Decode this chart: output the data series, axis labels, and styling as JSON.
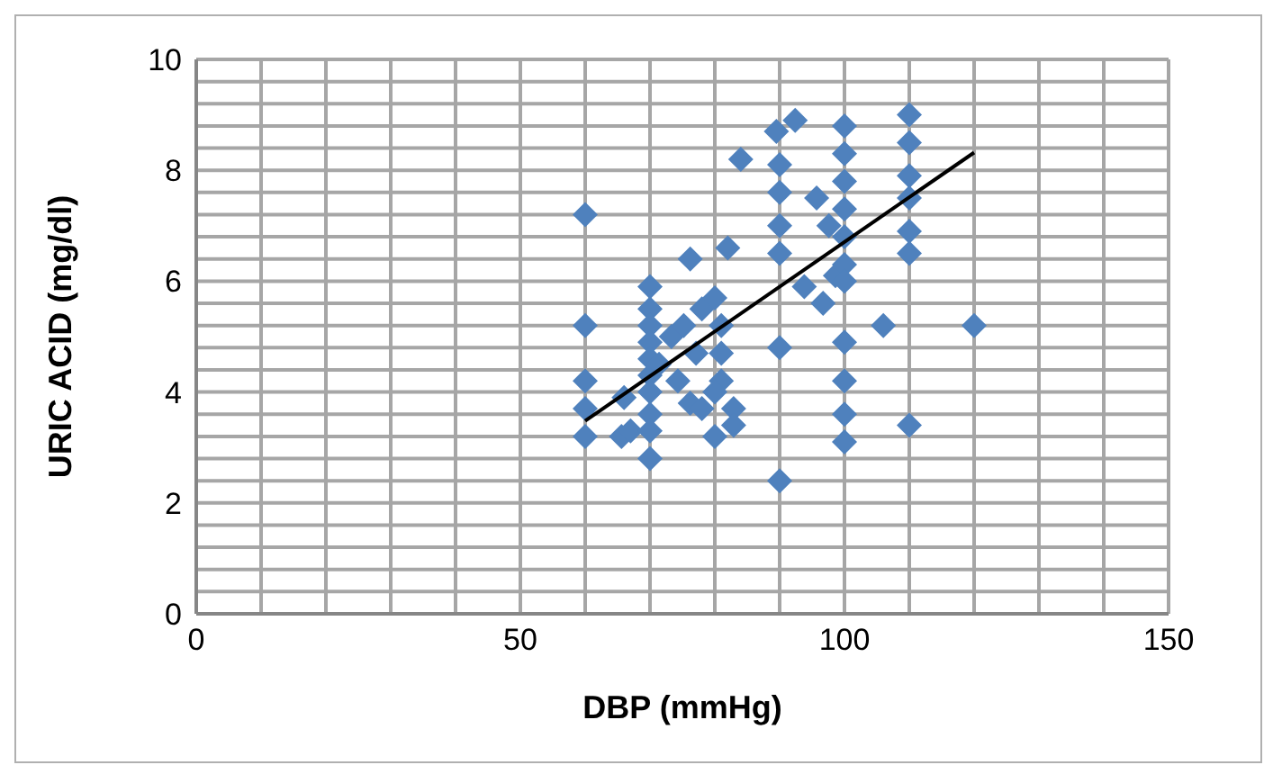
{
  "chart_data": {
    "type": "scatter",
    "xlabel": "DBP (mmHg)",
    "ylabel": "URIC ACID (mg/dl)",
    "xlim": [
      0,
      150
    ],
    "ylim": [
      0,
      10
    ],
    "xticks": [
      0,
      {
        "value": 10,
        "label": null
      },
      {
        "value": 20,
        "label": null
      },
      {
        "value": 30,
        "label": null
      },
      {
        "value": 40,
        "label": null
      },
      50,
      {
        "value": 60,
        "label": null
      },
      {
        "value": 70,
        "label": null
      },
      {
        "value": 80,
        "label": null
      },
      {
        "value": 90,
        "label": null
      },
      100,
      {
        "value": 110,
        "label": null
      },
      {
        "value": 120,
        "label": null
      },
      {
        "value": 130,
        "label": null
      },
      {
        "value": 140,
        "label": null
      },
      150
    ],
    "yticks": [
      0,
      {
        "value": 0.4,
        "label": null
      },
      {
        "value": 0.8,
        "label": null
      },
      {
        "value": 1.2,
        "label": null
      },
      {
        "value": 1.6,
        "label": null
      },
      2,
      {
        "value": 2.4,
        "label": null
      },
      {
        "value": 2.8,
        "label": null
      },
      {
        "value": 3.2,
        "label": null
      },
      {
        "value": 3.6,
        "label": null
      },
      4,
      {
        "value": 4.4,
        "label": null
      },
      {
        "value": 4.8,
        "label": null
      },
      {
        "value": 5.2,
        "label": null
      },
      {
        "value": 5.6,
        "label": null
      },
      6,
      {
        "value": 6.4,
        "label": null
      },
      {
        "value": 6.8,
        "label": null
      },
      {
        "value": 7.2,
        "label": null
      },
      {
        "value": 7.6,
        "label": null
      },
      8,
      {
        "value": 8.4,
        "label": null
      },
      {
        "value": 8.8,
        "label": null
      },
      {
        "value": 9.2,
        "label": null
      },
      {
        "value": 9.6,
        "label": null
      },
      10
    ],
    "grid": true,
    "series": [
      {
        "type": "scatter",
        "marker": "diamond",
        "color": "#4f81bd",
        "x": [
          60,
          60,
          60,
          60,
          60,
          65.6,
          66,
          67,
          70,
          70,
          70,
          70,
          70,
          70,
          70,
          70,
          70,
          70,
          71.4,
          73.3,
          74.3,
          75.2,
          76.2,
          76.2,
          77.1,
          78,
          78,
          80,
          80,
          81,
          81,
          81,
          82.9,
          82.9,
          80,
          82,
          84,
          89.5,
          90,
          90,
          90,
          90,
          90,
          90,
          92.4,
          93.8,
          95.7,
          96.7,
          97.6,
          98.6,
          100,
          100,
          100,
          100,
          100,
          100,
          100,
          100,
          100,
          100,
          100,
          106,
          110,
          110,
          110,
          110,
          110,
          110,
          110,
          120
        ],
        "values": [
          7.2,
          5.2,
          4.2,
          3.7,
          3.2,
          3.2,
          3.9,
          3.3,
          5.9,
          5.5,
          5.2,
          4.9,
          4.6,
          4.3,
          4,
          3.6,
          3.3,
          2.8,
          4.5,
          5,
          4.2,
          5.2,
          6.4,
          3.8,
          4.7,
          5.5,
          3.7,
          5.7,
          3.2,
          5.2,
          4.7,
          4.2,
          3.7,
          3.4,
          4,
          6.6,
          8.2,
          8.7,
          8.1,
          7.6,
          7,
          6.5,
          4.8,
          2.4,
          8.9,
          5.9,
          7.5,
          5.6,
          7,
          6.1,
          8.8,
          8.3,
          7.8,
          7.3,
          6.8,
          6.3,
          6,
          4.9,
          4.2,
          3.6,
          3.1,
          5.2,
          9,
          8.5,
          7.9,
          7.5,
          6.9,
          6.5,
          3.4,
          5.2
        ]
      },
      {
        "type": "line",
        "marker": "none",
        "color": "#000000",
        "x": [
          60,
          120
        ],
        "values": [
          3.48,
          8.32
        ]
      }
    ]
  }
}
